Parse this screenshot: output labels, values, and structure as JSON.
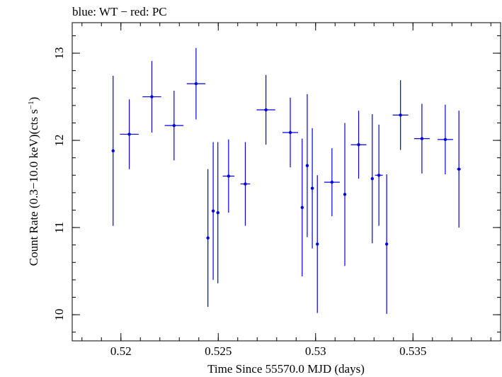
{
  "chart_data": {
    "type": "scatter",
    "title": "blue: WT − red: PC",
    "xlabel": "Time Since 55570.0 MJD (days)",
    "ylabel": {
      "main": "Count Rate (0.3−10.0 keV)(cts s",
      "superscript": "−1",
      "close": ")"
    },
    "xlim": [
      0.5175,
      0.5395
    ],
    "ylim": [
      9.7,
      13.35
    ],
    "x_ticks": [
      {
        "value": 0.52,
        "label": "0.52"
      },
      {
        "value": 0.525,
        "label": "0.525"
      },
      {
        "value": 0.53,
        "label": "0.53"
      },
      {
        "value": 0.535,
        "label": "0.535"
      }
    ],
    "x_minor_step": 0.001,
    "y_ticks": [
      {
        "value": 10,
        "label": "10"
      },
      {
        "value": 11,
        "label": "11"
      },
      {
        "value": 12,
        "label": "12"
      },
      {
        "value": 13,
        "label": "13"
      }
    ],
    "y_minor_step": 0.2,
    "grid": false,
    "color": "#0000dd",
    "series": [
      {
        "color": "#0000dd",
        "points": [
          {
            "x": 0.5196,
            "xerr": 5e-05,
            "y": 11.88,
            "yerr": 0.86
          },
          {
            "x": 0.52043,
            "xerr": 0.00048,
            "y": 12.07,
            "yerr": 0.4
          },
          {
            "x": 0.52159,
            "xerr": 0.00048,
            "y": 12.5,
            "yerr": 0.41
          },
          {
            "x": 0.52273,
            "xerr": 0.00048,
            "y": 12.17,
            "yerr": 0.4
          },
          {
            "x": 0.52386,
            "xerr": 0.00048,
            "y": 12.65,
            "yerr": 0.41
          },
          {
            "x": 0.52447,
            "xerr": 5e-05,
            "y": 10.88,
            "yerr": 0.79
          },
          {
            "x": 0.52474,
            "xerr": 5e-05,
            "y": 11.19,
            "yerr": 0.79
          },
          {
            "x": 0.52498,
            "xerr": 5e-05,
            "y": 11.17,
            "yerr": 0.81
          },
          {
            "x": 0.52553,
            "xerr": 0.0003,
            "y": 11.59,
            "yerr": 0.42
          },
          {
            "x": 0.52639,
            "xerr": 0.00025,
            "y": 11.5,
            "yerr": 0.48
          },
          {
            "x": 0.52745,
            "xerr": 0.00048,
            "y": 12.35,
            "yerr": 0.4
          },
          {
            "x": 0.5287,
            "xerr": 0.0004,
            "y": 12.09,
            "yerr": 0.4
          },
          {
            "x": 0.52931,
            "xerr": 5e-05,
            "y": 11.23,
            "yerr": 0.79
          },
          {
            "x": 0.52957,
            "xerr": 5e-05,
            "y": 11.71,
            "yerr": 0.82
          },
          {
            "x": 0.52983,
            "xerr": 5e-05,
            "y": 11.45,
            "yerr": 0.69
          },
          {
            "x": 0.53009,
            "xerr": 5e-05,
            "y": 10.81,
            "yerr": 0.79
          },
          {
            "x": 0.53084,
            "xerr": 0.0004,
            "y": 11.52,
            "yerr": 0.39
          },
          {
            "x": 0.5315,
            "xerr": 5e-05,
            "y": 11.38,
            "yerr": 0.82
          },
          {
            "x": 0.53221,
            "xerr": 0.0004,
            "y": 11.95,
            "yerr": 0.39
          },
          {
            "x": 0.53291,
            "xerr": 5e-05,
            "y": 11.56,
            "yerr": 0.74
          },
          {
            "x": 0.53325,
            "xerr": 0.0002,
            "y": 11.6,
            "yerr": 0.58
          },
          {
            "x": 0.53365,
            "xerr": 5e-05,
            "y": 10.81,
            "yerr": 0.8
          },
          {
            "x": 0.53436,
            "xerr": 0.0004,
            "y": 12.29,
            "yerr": 0.4
          },
          {
            "x": 0.53546,
            "xerr": 0.0004,
            "y": 12.02,
            "yerr": 0.4
          },
          {
            "x": 0.53666,
            "xerr": 0.0004,
            "y": 12.01,
            "yerr": 0.4
          },
          {
            "x": 0.53736,
            "xerr": 0.0001,
            "y": 11.67,
            "yerr": 0.67
          }
        ]
      }
    ]
  }
}
